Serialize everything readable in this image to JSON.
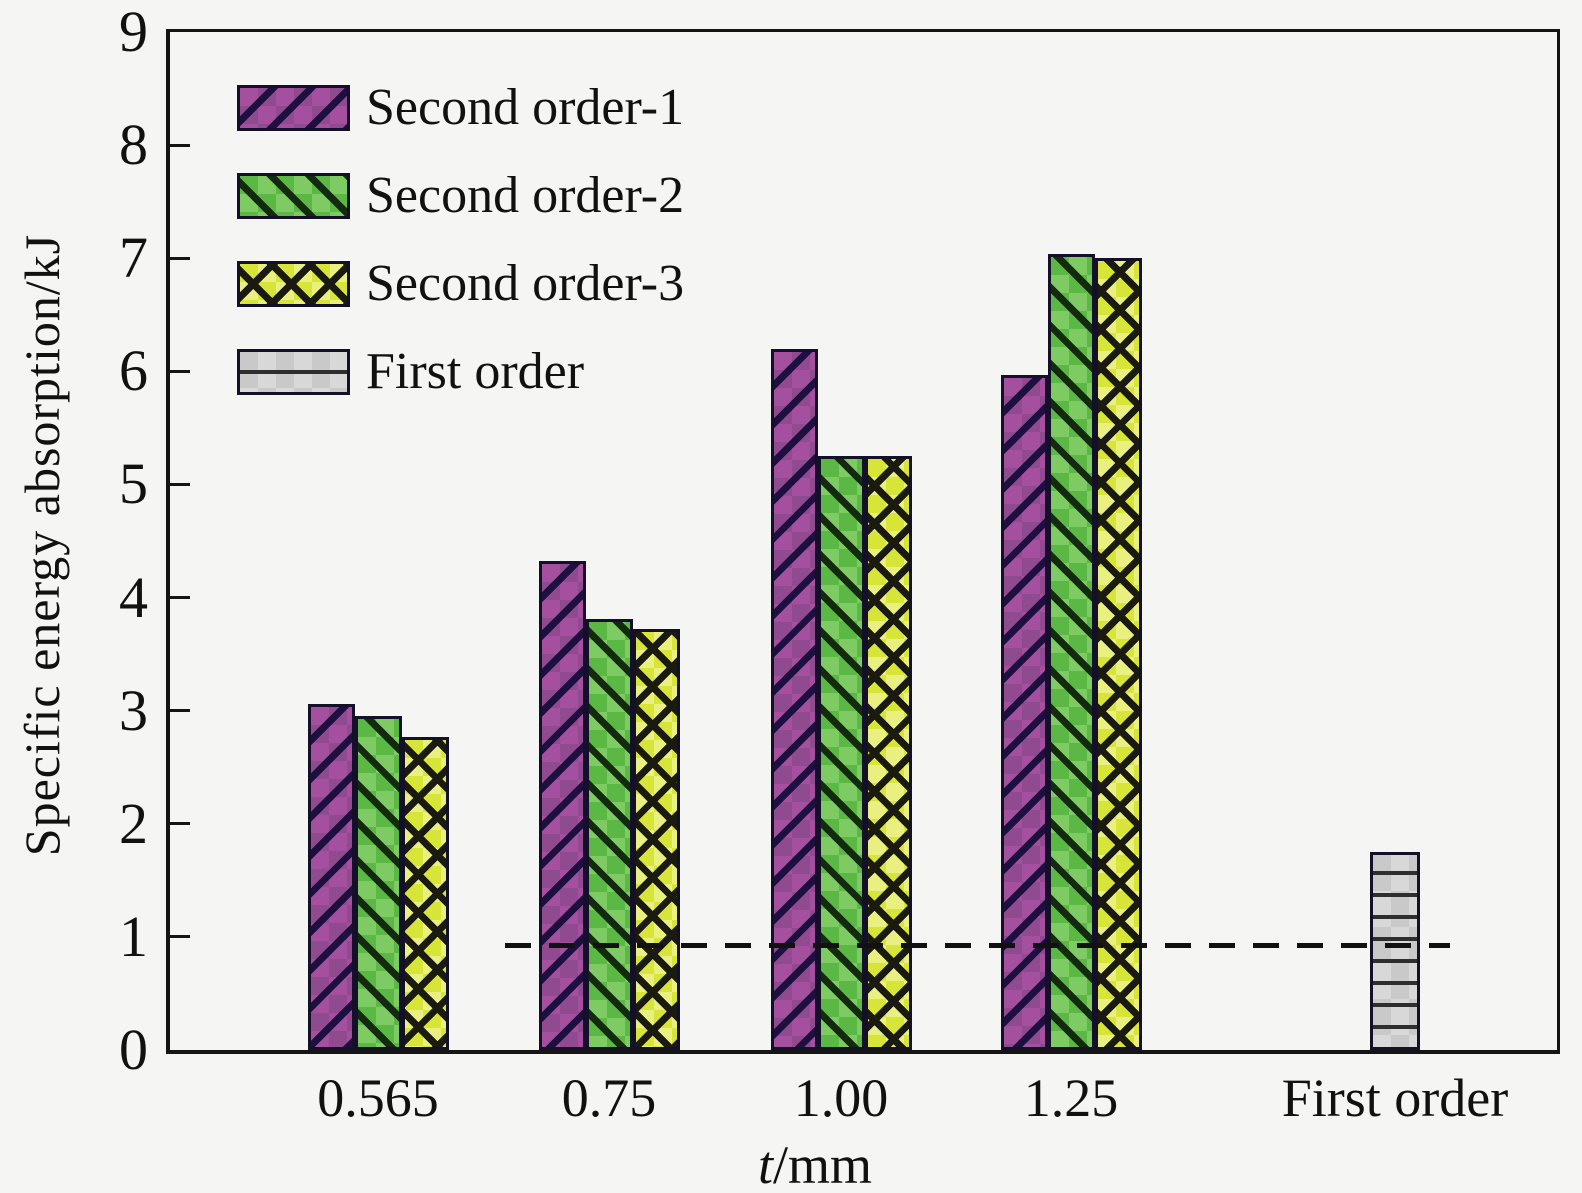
{
  "figure": {
    "background": "#f5f5f3",
    "text_color": "#161616",
    "frame_color": "#151515"
  },
  "chart_data": {
    "type": "bar",
    "title": "",
    "ylabel": "Specific energy absorption/kJ",
    "xlabel_italic": "t",
    "xlabel_unit": "/mm",
    "ylim": [
      0,
      9
    ],
    "yticks": [
      0,
      1,
      2,
      3,
      4,
      5,
      6,
      7,
      8,
      9
    ],
    "categories": [
      "0.565",
      "0.75",
      "1.00",
      "1.25",
      "First order"
    ],
    "series": [
      {
        "name": "Second order-1",
        "hatch": "forward-diagonal",
        "fill": "#a5509f",
        "fill_alt": "#8f4a90",
        "hatch_color": "#1d1040",
        "values": [
          3.06,
          4.32,
          6.2,
          5.97,
          null
        ]
      },
      {
        "name": "Second order-2",
        "hatch": "backward-diagonal",
        "fill": "#5cb845",
        "fill_alt": "#7ecb63",
        "hatch_color": "#142a0e",
        "values": [
          2.95,
          3.81,
          5.25,
          7.04,
          null
        ]
      },
      {
        "name": "Second order-3",
        "hatch": "cross-diagonal",
        "fill": "#d7e438",
        "fill_alt": "#e9f080",
        "hatch_color": "#1a1a10",
        "values": [
          2.77,
          3.72,
          5.25,
          7.0,
          null
        ]
      },
      {
        "name": "First order",
        "hatch": "horizontal",
        "fill": "#c9c9c9",
        "fill_alt": "#d8d8d8",
        "hatch_color": "#2e2e2e",
        "values": [
          null,
          null,
          null,
          null,
          1.75
        ]
      }
    ],
    "reference_line": {
      "value": 0.93,
      "style": "dashed",
      "color": "#111111"
    },
    "legend_position": "upper-left",
    "grid": false
  }
}
